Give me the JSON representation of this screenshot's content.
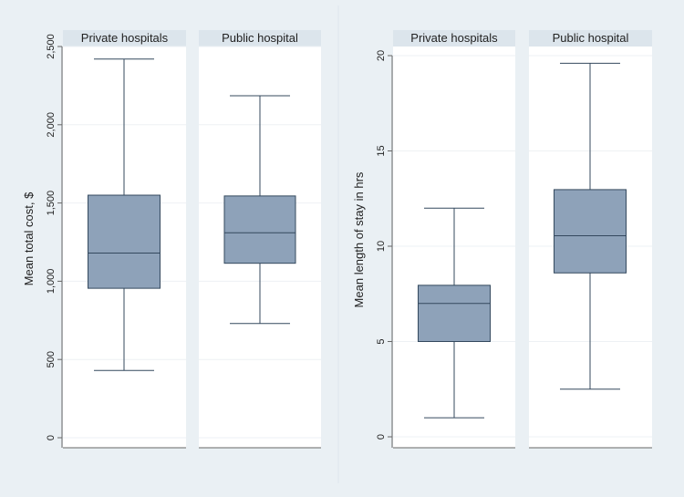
{
  "chart_data": [
    {
      "type": "box",
      "ylabel": "Mean total cost, $",
      "ylim": [
        0,
        2500
      ],
      "yticks": [
        0,
        500,
        1000,
        1500,
        2000,
        2500
      ],
      "ytick_labels": [
        "0",
        "500",
        "1,000",
        "1,500",
        "2,000",
        "2,500"
      ],
      "grid": true,
      "panels": [
        {
          "label": "Private hospitals",
          "whisker_low": 430,
          "q1": 955,
          "median": 1180,
          "q3": 1550,
          "whisker_high": 2420
        },
        {
          "label": "Public hospital",
          "whisker_low": 730,
          "q1": 1115,
          "median": 1310,
          "q3": 1545,
          "whisker_high": 2185
        }
      ]
    },
    {
      "type": "box",
      "ylabel": "Mean length of stay in hrs",
      "ylim": [
        0,
        20
      ],
      "yticks": [
        0,
        5,
        10,
        15,
        20
      ],
      "ytick_labels": [
        "0",
        "5",
        "10",
        "15",
        "20"
      ],
      "grid": true,
      "panels": [
        {
          "label": "Private hospitals",
          "whisker_low": 1,
          "q1": 5,
          "median": 7,
          "q3": 7.95,
          "whisker_high": 12
        },
        {
          "label": "Public hospital",
          "whisker_low": 2.5,
          "q1": 8.6,
          "median": 10.55,
          "q3": 12.97,
          "whisker_high": 19.6
        }
      ]
    }
  ],
  "colors": {
    "background": "#eaf0f4",
    "panel_bg": "#ffffff",
    "header_bg": "#dce5ec",
    "box_fill": "#8ea2b9",
    "line": "#34495e",
    "grid": "#eef1f4"
  }
}
